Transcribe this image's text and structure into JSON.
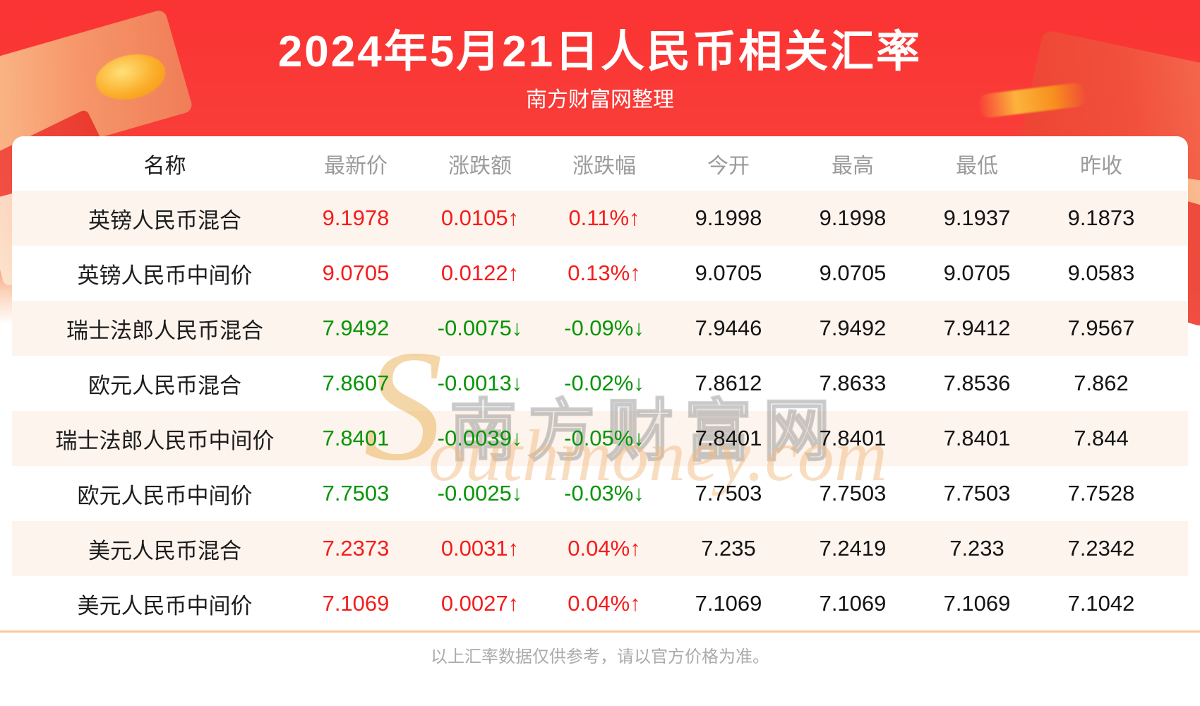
{
  "header": {
    "title": "2024年5月21日人民币相关汇率",
    "subtitle": "南方财富网整理"
  },
  "table": {
    "columns": [
      "名称",
      "最新价",
      "涨跌额",
      "涨跌幅",
      "今开",
      "最高",
      "最低",
      "昨收"
    ],
    "rows": [
      {
        "name": "英镑人民币混合",
        "latest": "9.1978",
        "change": "0.0105↑",
        "change_pct": "0.11%↑",
        "open": "9.1998",
        "high": "9.1998",
        "low": "9.1937",
        "prev_close": "9.1873",
        "trend": "up"
      },
      {
        "name": "英镑人民币中间价",
        "latest": "9.0705",
        "change": "0.0122↑",
        "change_pct": "0.13%↑",
        "open": "9.0705",
        "high": "9.0705",
        "low": "9.0705",
        "prev_close": "9.0583",
        "trend": "up"
      },
      {
        "name": "瑞士法郎人民币混合",
        "latest": "7.9492",
        "change": "-0.0075↓",
        "change_pct": "-0.09%↓",
        "open": "7.9446",
        "high": "7.9492",
        "low": "7.9412",
        "prev_close": "7.9567",
        "trend": "down"
      },
      {
        "name": "欧元人民币混合",
        "latest": "7.8607",
        "change": "-0.0013↓",
        "change_pct": "-0.02%↓",
        "open": "7.8612",
        "high": "7.8633",
        "low": "7.8536",
        "prev_close": "7.862",
        "trend": "down"
      },
      {
        "name": "瑞士法郎人民币中间价",
        "latest": "7.8401",
        "change": "-0.0039↓",
        "change_pct": "-0.05%↓",
        "open": "7.8401",
        "high": "7.8401",
        "low": "7.8401",
        "prev_close": "7.844",
        "trend": "down"
      },
      {
        "name": "欧元人民币中间价",
        "latest": "7.7503",
        "change": "-0.0025↓",
        "change_pct": "-0.03%↓",
        "open": "7.7503",
        "high": "7.7503",
        "low": "7.7503",
        "prev_close": "7.7528",
        "trend": "down"
      },
      {
        "name": "美元人民币混合",
        "latest": "7.2373",
        "change": "0.0031↑",
        "change_pct": "0.04%↑",
        "open": "7.235",
        "high": "7.2419",
        "low": "7.233",
        "prev_close": "7.2342",
        "trend": "up"
      },
      {
        "name": "美元人民币中间价",
        "latest": "7.1069",
        "change": "0.0027↑",
        "change_pct": "0.04%↑",
        "open": "7.1069",
        "high": "7.1069",
        "low": "7.1069",
        "prev_close": "7.1042",
        "trend": "up"
      }
    ]
  },
  "watermark": {
    "s": "S",
    "cn": "南方财富网",
    "en": "outhmoney.com"
  },
  "footer": {
    "disclaimer": "以上汇率数据仅供参考，请以官方价格为准。"
  },
  "colors": {
    "up": "#f51c1c",
    "down": "#089508",
    "header_red": "#fa3333",
    "stripe_pink": "#fdf4ed",
    "divider_orange": "#f9c896"
  },
  "chart_data": {
    "type": "table",
    "title": "2024年5月21日人民币相关汇率",
    "subtitle": "南方财富网整理",
    "columns": [
      "名称",
      "最新价",
      "涨跌额",
      "涨跌幅",
      "今开",
      "最高",
      "最低",
      "昨收"
    ],
    "rows": [
      [
        "英镑人民币混合",
        9.1978,
        0.0105,
        "0.11%",
        9.1998,
        9.1998,
        9.1937,
        9.1873
      ],
      [
        "英镑人民币中间价",
        9.0705,
        0.0122,
        "0.13%",
        9.0705,
        9.0705,
        9.0705,
        9.0583
      ],
      [
        "瑞士法郎人民币混合",
        7.9492,
        -0.0075,
        "-0.09%",
        7.9446,
        7.9492,
        7.9412,
        7.9567
      ],
      [
        "欧元人民币混合",
        7.8607,
        -0.0013,
        "-0.02%",
        7.8612,
        7.8633,
        7.8536,
        7.862
      ],
      [
        "瑞士法郎人民币中间价",
        7.8401,
        -0.0039,
        "-0.05%",
        7.8401,
        7.8401,
        7.8401,
        7.844
      ],
      [
        "欧元人民币中间价",
        7.7503,
        -0.0025,
        "-0.03%",
        7.7503,
        7.7503,
        7.7503,
        7.7528
      ],
      [
        "美元人民币混合",
        7.2373,
        0.0031,
        "0.04%",
        7.235,
        7.2419,
        7.233,
        7.2342
      ],
      [
        "美元人民币中间价",
        7.1069,
        0.0027,
        "0.04%",
        7.1069,
        7.1069,
        7.1069,
        7.1042
      ]
    ]
  }
}
